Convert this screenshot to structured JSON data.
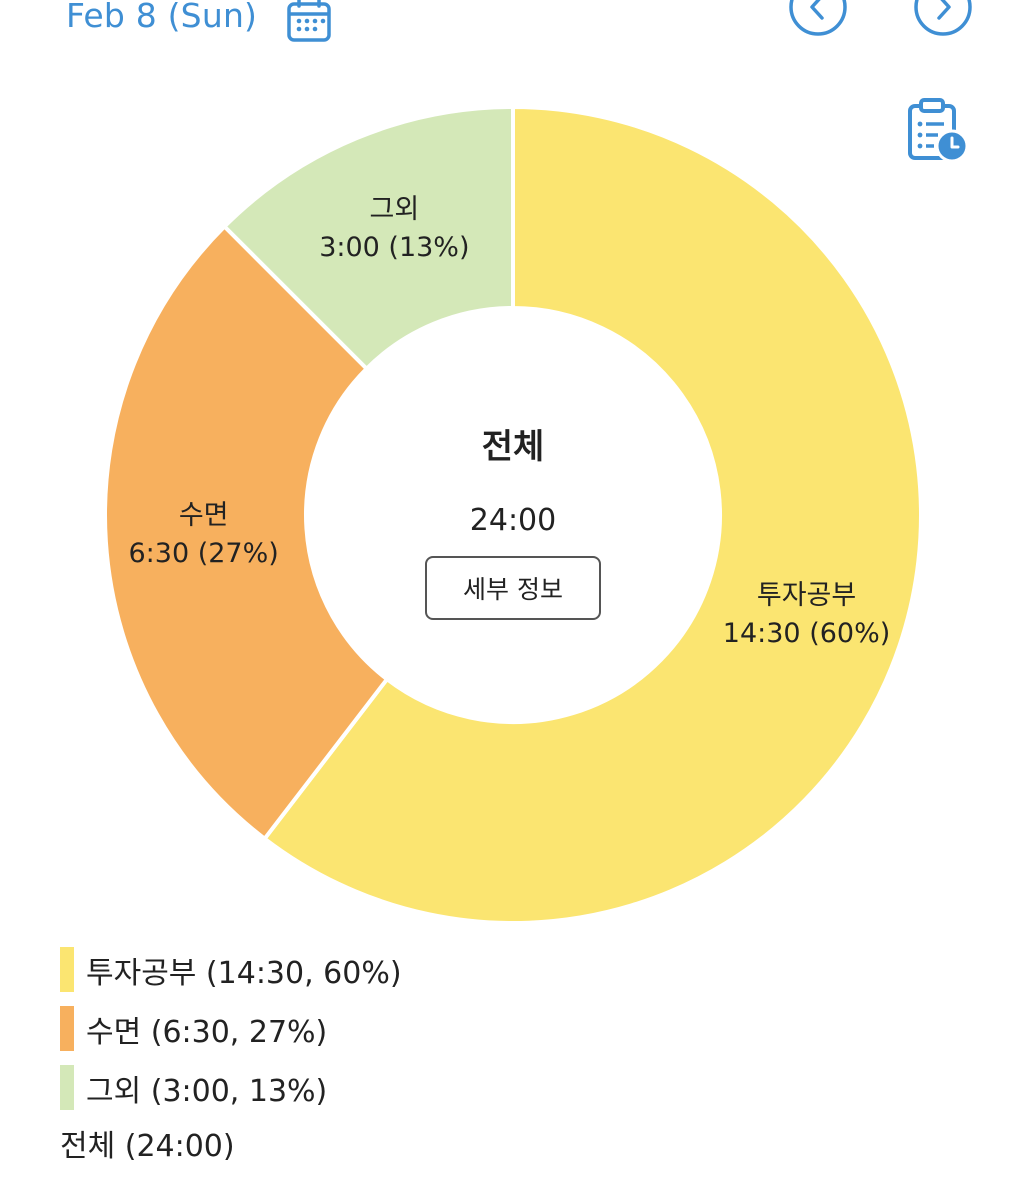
{
  "header": {
    "date_label": "Feb 8 (Sun)",
    "accent_color": "#3f8fd4",
    "calendar_icon": "calendar-icon",
    "prev_icon": "chevron-left-icon",
    "next_icon": "chevron-right-icon",
    "report_icon": "clipboard-clock-icon"
  },
  "center": {
    "title": "전체",
    "total": "24:00",
    "detail_button_label": "세부 정보"
  },
  "chart_data": {
    "type": "pie",
    "donut": true,
    "total": "24:00",
    "slices": [
      {
        "name": "투자공부",
        "time": "14:30",
        "percent": 60,
        "hours": 14.5,
        "color": "#fbe571",
        "label_line2": "14:30 (60%)"
      },
      {
        "name": "수면",
        "time": "6:30",
        "percent": 27,
        "hours": 6.5,
        "color": "#f7b05e",
        "label_line2": "6:30 (27%)"
      },
      {
        "name": "그외",
        "time": "3:00",
        "percent": 13,
        "hours": 3.0,
        "color": "#d4e8b8",
        "label_line2": "3:00 (13%)"
      }
    ]
  },
  "legend": {
    "items": [
      {
        "text": "투자공부 (14:30, 60%)",
        "color": "#fbe571"
      },
      {
        "text": "수면 (6:30, 27%)",
        "color": "#f7b05e"
      },
      {
        "text": "그외 (3:00, 13%)",
        "color": "#d4e8b8"
      }
    ],
    "total_text": "전체 (24:00)"
  }
}
